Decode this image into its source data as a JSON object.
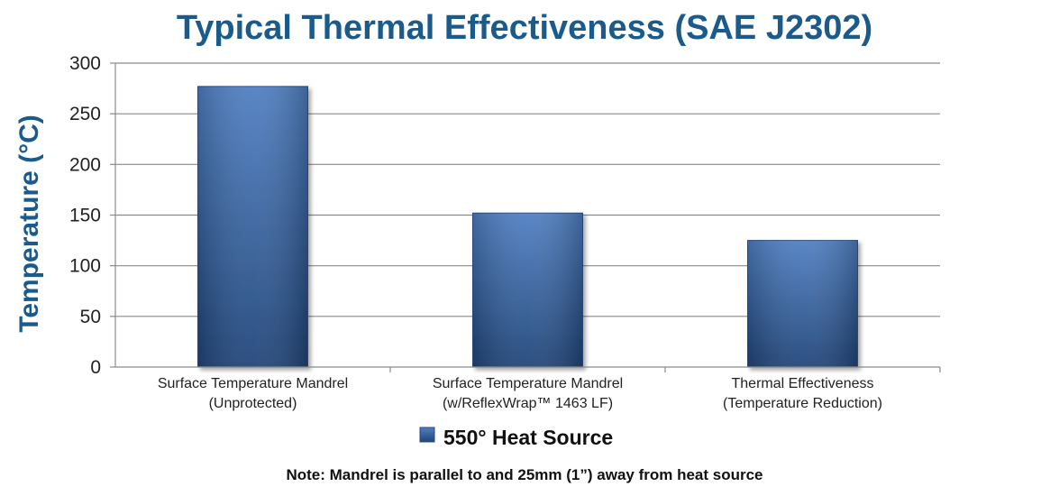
{
  "chart_data": {
    "type": "bar",
    "title": "Typical Thermal Effectiveness (SAE J2302)",
    "ylabel": "Temperature (°C)",
    "xlabel": "",
    "ylim": [
      0,
      300
    ],
    "yticks": [
      0,
      50,
      100,
      150,
      200,
      250,
      300
    ],
    "grid": true,
    "legend_position": "bottom",
    "categories": [
      [
        "Surface Temperature Mandrel",
        "(Unprotected)"
      ],
      [
        "Surface Temperature Mandrel",
        "(w/ReflexWrap™ 1463 LF)"
      ],
      [
        "Thermal Effectiveness",
        "(Temperature Reduction)"
      ]
    ],
    "series": [
      {
        "name": "550° Heat Source",
        "values": [
          277,
          152,
          125
        ],
        "color": "#3a66a8"
      }
    ],
    "note": "Note: Mandrel is parallel to and 25mm (1”) away from heat source"
  },
  "colors": {
    "title": "#1a5b8c",
    "ylabel": "#1a5b8c",
    "bar_light": "#4f7fc2",
    "bar_dark": "#1f4478",
    "grid": "#8a8a8a"
  }
}
